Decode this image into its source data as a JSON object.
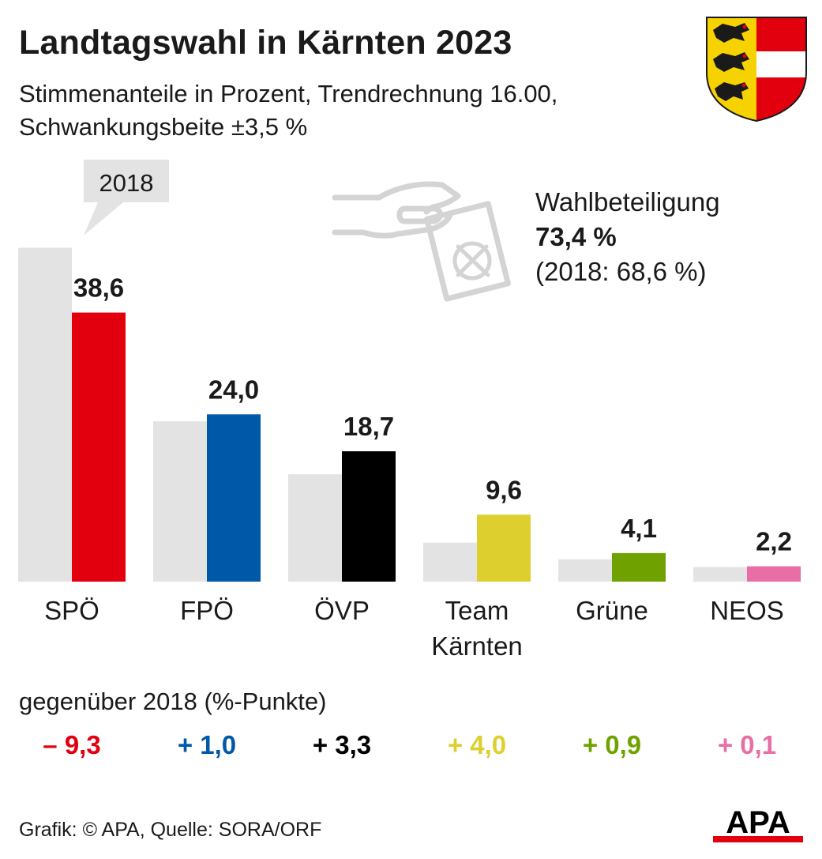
{
  "header": {
    "title": "Landtagswahl in Kärnten 2023",
    "subtitle_line1": "Stimmenanteile in Prozent, Trendrechnung 16.00,",
    "subtitle_line2": "Schwankungsbeite ±3,5 %"
  },
  "turnout": {
    "label": "Wahlbeteiligung",
    "value": "73,4 %",
    "previous": "(2018: 68,6 %)"
  },
  "chart_data": {
    "type": "bar",
    "title": "Landtagswahl in Kärnten 2023",
    "legend_2018": "2018",
    "categories": [
      "SPÖ",
      "FPÖ",
      "ÖVP",
      "Team Kärnten",
      "Grüne",
      "NEOS"
    ],
    "category_lines": [
      [
        "SPÖ"
      ],
      [
        "FPÖ"
      ],
      [
        "ÖVP"
      ],
      [
        "Team",
        "Kärnten"
      ],
      [
        "Grüne"
      ],
      [
        "NEOS"
      ]
    ],
    "series": [
      {
        "name": "2018",
        "values": [
          47.9,
          23.0,
          15.4,
          5.6,
          3.2,
          2.1
        ],
        "color": "#e3e3e3"
      },
      {
        "values": [
          38.6,
          24.0,
          18.7,
          9.6,
          4.1,
          2.2
        ]
      }
    ],
    "value_labels": [
      "38,6",
      "24,0",
      "18,7",
      "9,6",
      "4,1",
      "2,2"
    ],
    "colors": [
      "#e2000f",
      "#0059a8",
      "#000000",
      "#ddd02e",
      "#6fa200",
      "#e86ea5"
    ],
    "ylim": [
      0,
      50
    ]
  },
  "comparison": {
    "label": "gegenüber 2018 (%-Punkte)",
    "changes": [
      "– 9,3",
      "+ 1,0",
      "+ 3,3",
      "+ 4,0",
      "+ 0,9",
      "+ 0,1"
    ]
  },
  "footer": {
    "credit": "Grafik: © APA, Quelle: SORA/ORF",
    "logo": "APA"
  },
  "icons": {
    "coat_of_arms": "carinthia-coat-of-arms-icon",
    "ballot": "hand-ballot-icon"
  }
}
